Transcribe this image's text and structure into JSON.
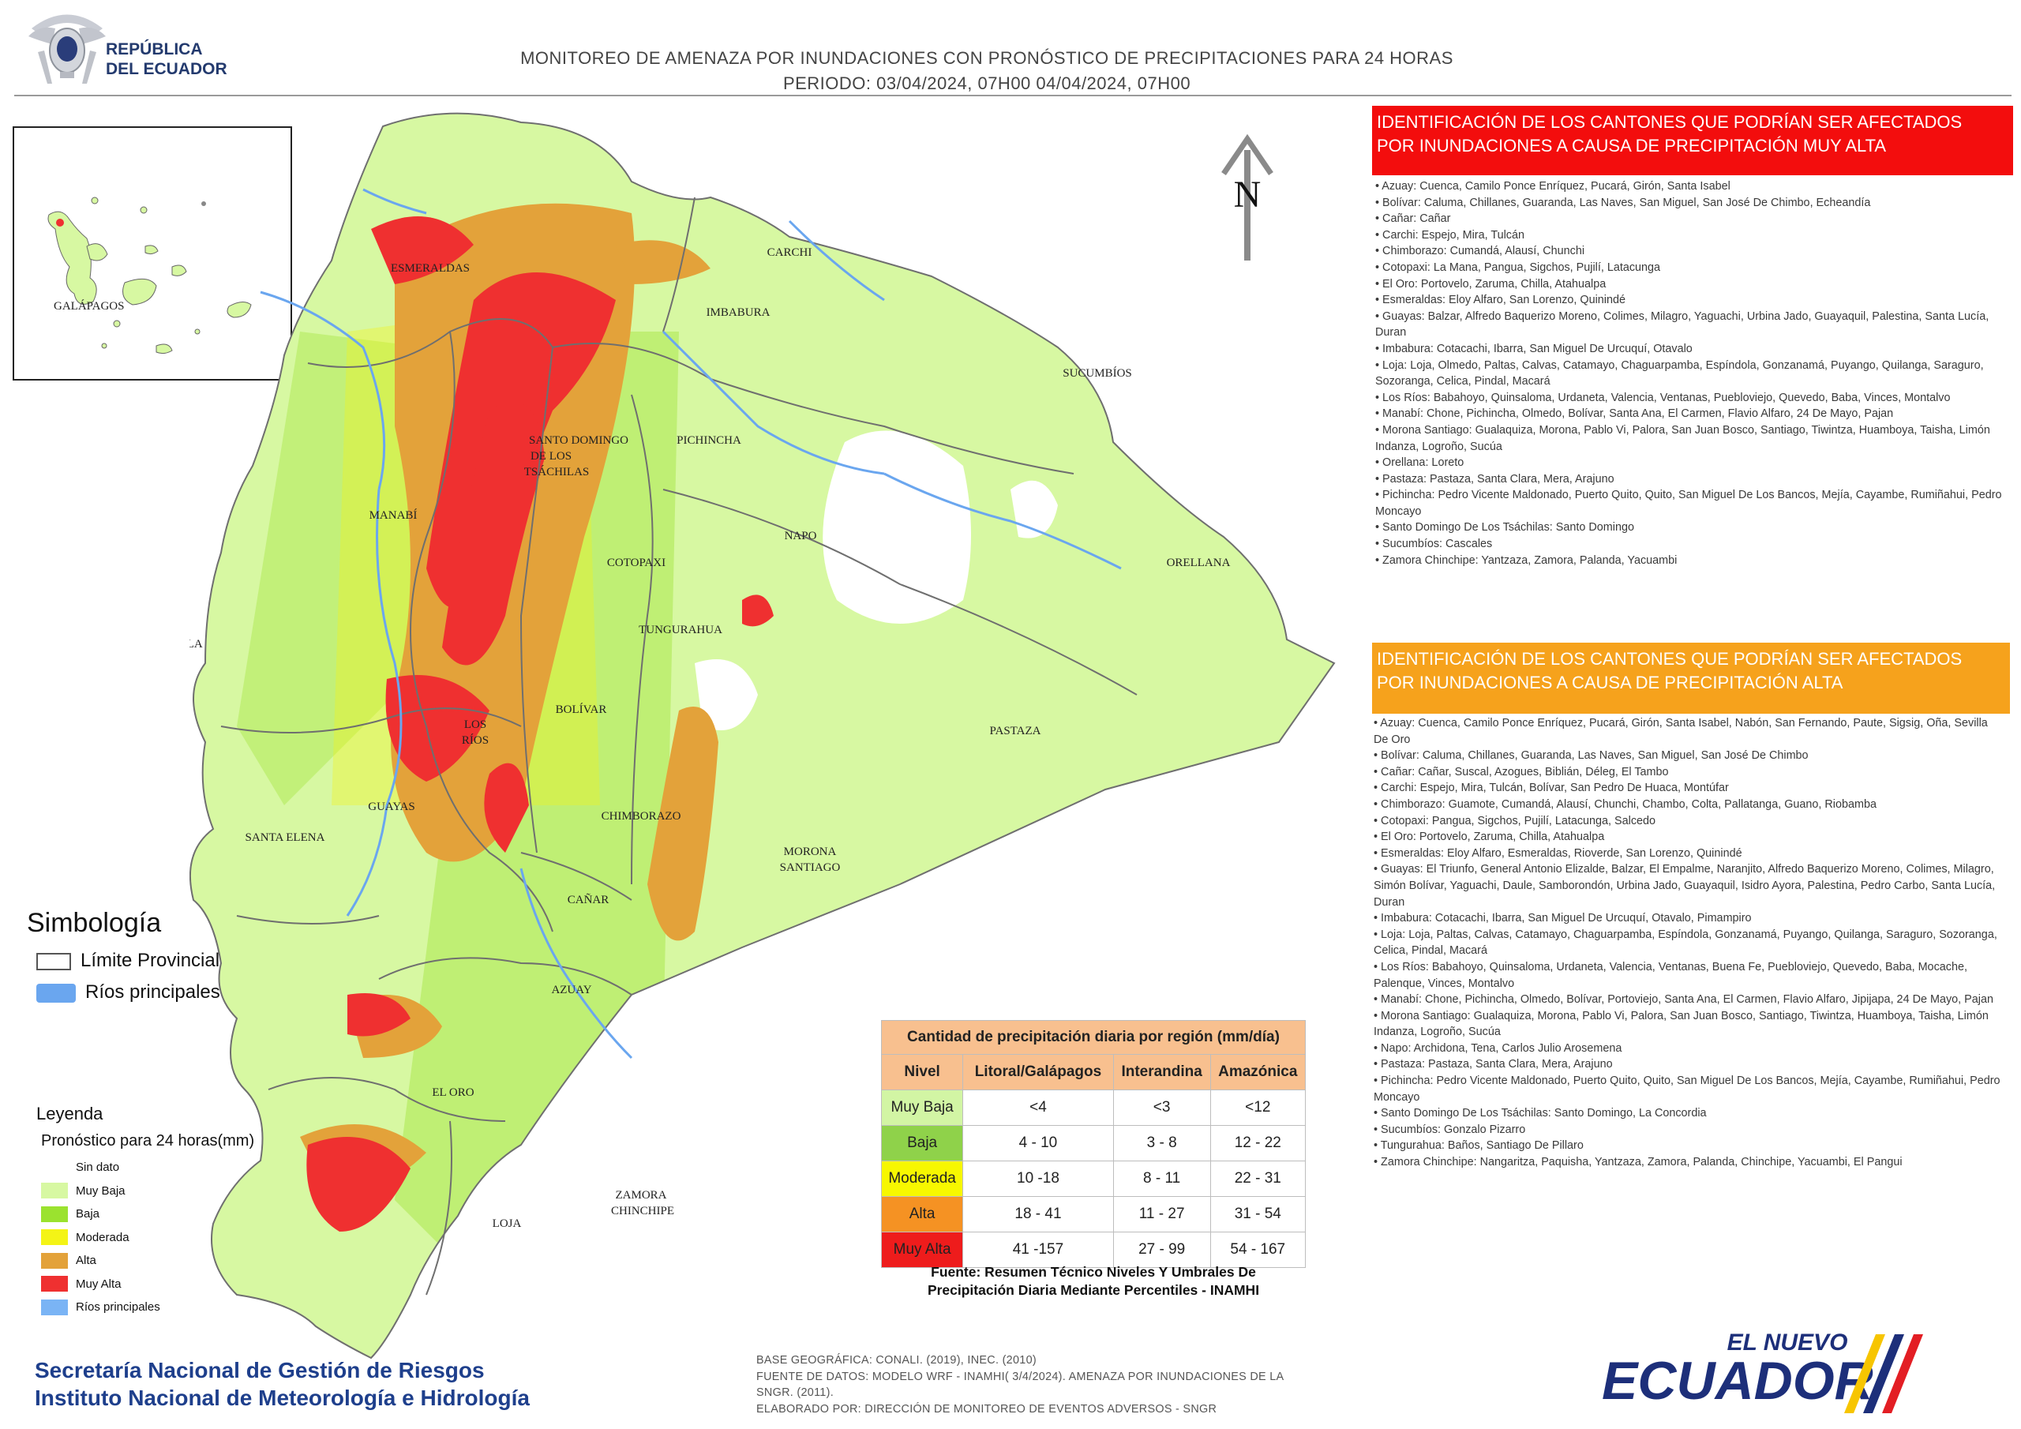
{
  "header": {
    "logo_text_line1": "REPÚBLICA",
    "logo_text_line2": "DEL ECUADOR",
    "title_line1": "MONITOREO DE AMENAZA POR INUNDACIONES  CON PRONÓSTICO DE  PRECIPITACIONES PARA 24 HORAS",
    "title_line2": "PERIODO: 03/04/2024, 07H00 04/04/2024, 07H00"
  },
  "map": {
    "labels": {
      "galapagos": "GALÁPAGOS",
      "esmeraldas": "ESMERALDAS",
      "carchi": "CARCHI",
      "imbabura": "IMBABURA",
      "sucumbios": "SUCUMBÍOS",
      "santo_domingo_1": "SANTO DOMINGO",
      "santo_domingo_2": "DE LOS",
      "santo_domingo_3": "TSÁCHILAS",
      "pichincha": "PICHINCHA",
      "manabi": "MANABÍ",
      "napo": "NAPO",
      "orellana": "ORELLANA",
      "cotopaxi": "COTOPAXI",
      "isla": "ISLA",
      "tungurahua": "TUNGURAHUA",
      "bolivar": "BOLÍVAR",
      "los_rios_1": "LOS",
      "los_rios_2": "RÍOS",
      "pastaza": "PASTAZA",
      "guayas": "GUAYAS",
      "chimborazo": "CHIMBORAZO",
      "santa_elena": "SANTA ELENA",
      "morona_1": "MORONA",
      "morona_2": "SANTIAGO",
      "canar": "CAÑAR",
      "azuay": "AZUAY",
      "el_oro": "EL ORO",
      "zamora_1": "ZAMORA",
      "zamora_2": "CHINCHIPE",
      "loja": "LOJA"
    },
    "north_label": "N"
  },
  "red_panel": {
    "heading_line1": "IDENTIFICACIÓN DE LOS CANTONES QUE PODRÍAN SER AFECTADOS",
    "heading_line2": "POR INUNDACIONES  A CAUSA DE PRECIPITACIÓN MUY ALTA",
    "items": [
      "Azuay: Cuenca, Camilo Ponce Enríquez, Pucará, Girón, Santa Isabel",
      "Bolívar: Caluma, Chillanes, Guaranda, Las Naves, San Miguel, San José De Chimbo, Echeandía",
      "Cañar: Cañar",
      "Carchi: Espejo, Mira, Tulcán",
      "Chimborazo: Cumandá, Alausí, Chunchi",
      "Cotopaxi: La Mana, Pangua, Sigchos, Pujilí, Latacunga",
      "El Oro: Portovelo, Zaruma, Chilla, Atahualpa",
      "Esmeraldas: Eloy Alfaro, San Lorenzo, Quinindé",
      "Guayas: Balzar, Alfredo Baquerizo Moreno, Colimes, Milagro, Yaguachi, Urbina Jado, Guayaquil, Palestina, Santa Lucía, Duran",
      "Imbabura: Cotacachi, Ibarra, San Miguel De Urcuquí, Otavalo",
      "Loja: Loja, Olmedo, Paltas, Calvas, Catamayo, Chaguarpamba, Espíndola, Gonzanamá, Puyango, Quilanga, Saraguro, Sozoranga, Celica, Pindal, Macará",
      "Los Ríos: Babahoyo, Quinsaloma, Urdaneta, Valencia, Ventanas, Puebloviejo, Quevedo, Baba, Vinces, Montalvo",
      "Manabí: Chone, Pichincha, Olmedo, Bolívar, Santa Ana, El Carmen, Flavio Alfaro, 24 De Mayo, Pajan",
      "Morona Santiago: Gualaquiza, Morona, Pablo Vi, Palora, San Juan Bosco, Santiago, Tiwintza, Huamboya, Taisha, Limón Indanza, Logroño, Sucúa",
      "Orellana: Loreto",
      "Pastaza: Pastaza, Santa Clara, Mera, Arajuno",
      "Pichincha: Pedro Vicente Maldonado, Puerto Quito, Quito, San Miguel De Los Bancos, Mejía, Cayambe, Rumiñahui, Pedro Moncayo",
      "Santo Domingo De Los Tsáchilas: Santo Domingo",
      "Sucumbíos: Cascales",
      "Zamora Chinchipe: Yantzaza, Zamora, Palanda, Yacuambi"
    ]
  },
  "orange_panel": {
    "heading_line1": "IDENTIFICACIÓN DE LOS CANTONES QUE  PODRÍAN SER AFECTADOS",
    "heading_line2": "POR INUNDACIONES  A CAUSA DE PRECIPITACIÓN  ALTA",
    "items": [
      "Azuay: Cuenca, Camilo Ponce Enríquez, Pucará, Girón, Santa Isabel, Nabón, San Fernando, Paute, Sigsig, Oña, Sevilla De Oro",
      "Bolívar: Caluma, Chillanes, Guaranda, Las Naves, San Miguel, San José De Chimbo",
      "Cañar: Cañar, Suscal, Azogues, Biblián, Déleg, El Tambo",
      "Carchi: Espejo, Mira, Tulcán, Bolívar, San Pedro De Huaca, Montúfar",
      "Chimborazo: Guamote, Cumandá, Alausí, Chunchi, Chambo, Colta, Pallatanga, Guano, Riobamba",
      "Cotopaxi: Pangua, Sigchos, Pujilí, Latacunga, Salcedo",
      "El Oro: Portovelo, Zaruma, Chilla, Atahualpa",
      "Esmeraldas: Eloy Alfaro, Esmeraldas, Rioverde, San Lorenzo, Quinindé",
      "Guayas: El Triunfo, General Antonio Elizalde, Balzar, El Empalme, Naranjito, Alfredo Baquerizo Moreno, Colimes, Milagro, Simón Bolívar, Yaguachi, Daule, Samborondón, Urbina Jado, Guayaquil, Isidro Ayora, Palestina, Pedro Carbo, Santa Lucía, Duran",
      "Imbabura: Cotacachi, Ibarra, San Miguel De Urcuquí, Otavalo, Pimampiro",
      "Loja: Loja, Paltas, Calvas, Catamayo, Chaguarpamba, Espíndola, Gonzanamá, Puyango, Quilanga, Saraguro, Sozoranga, Celica, Pindal, Macará",
      "Los Ríos: Babahoyo, Quinsaloma, Urdaneta, Valencia, Ventanas, Buena Fe, Puebloviejo, Quevedo, Baba, Mocache, Palenque, Vinces, Montalvo",
      "Manabí: Chone, Pichincha, Olmedo, Bolívar, Portoviejo, Santa Ana, El Carmen, Flavio Alfaro, Jipijapa, 24 De Mayo, Pajan",
      "Morona Santiago: Gualaquiza, Morona, Pablo Vi, Palora, San Juan Bosco, Santiago, Tiwintza, Huamboya, Taisha, Limón Indanza, Logroño, Sucúa",
      "Napo: Archidona, Tena, Carlos Julio Arosemena",
      "Pastaza: Pastaza, Santa Clara, Mera, Arajuno",
      "Pichincha: Pedro Vicente Maldonado, Puerto Quito, Quito, San Miguel De Los Bancos, Mejía, Cayambe, Rumiñahui, Pedro Moncayo",
      "Santo Domingo De Los Tsáchilas: Santo Domingo, La Concordia",
      "Sucumbíos: Gonzalo Pizarro",
      "Tungurahua: Baños, Santiago De Pillaro",
      "Zamora Chinchipe: Nangaritza, Paquisha, Yantzaza, Zamora, Palanda, Chinchipe, Yacuambi, El Pangui"
    ]
  },
  "symbology": {
    "title": "Simbología",
    "limite_label": "Límite Provincial",
    "rios_label": "Ríos principales",
    "colors": {
      "limite_border": "#555555",
      "rios": "#6aa6ef"
    }
  },
  "legend": {
    "title": "Leyenda",
    "subtitle": "Pronóstico para 24 horas(mm)",
    "items": [
      {
        "label": "Sin dato",
        "color": "#ffffff"
      },
      {
        "label": "Muy Baja",
        "color": "#d7f8a2"
      },
      {
        "label": "Baja",
        "color": "#9be22f"
      },
      {
        "label": "Moderada",
        "color": "#f4f416"
      },
      {
        "label": "Alta",
        "color": "#e3a23a"
      },
      {
        "label": "Muy Alta",
        "color": "#ef3030"
      },
      {
        "label": "Ríos principales",
        "color": "#7ab4f5"
      }
    ]
  },
  "precip_table": {
    "caption": "Cantidad de precipitación diaria por región (mm/día)",
    "headers": [
      "Nivel",
      "Litoral/Galápagos",
      "Interandina",
      "Amazónica"
    ],
    "rows": [
      {
        "level": "Muy Baja",
        "color": "#d2f5a4",
        "litoral": "<4",
        "interandina": "<3",
        "amazonica": "<12"
      },
      {
        "level": "Baja",
        "color": "#8fd24a",
        "litoral": "4 - 10",
        "interandina": "3 - 8",
        "amazonica": "12 - 22"
      },
      {
        "level": "Moderada",
        "color": "#f7f700",
        "litoral": "10 -18",
        "interandina": "8 - 11",
        "amazonica": "22 - 31"
      },
      {
        "level": "Alta",
        "color": "#f59223",
        "litoral": "18 - 41",
        "interandina": "11 - 27",
        "amazonica": "31 - 54"
      },
      {
        "level": "Muy Alta",
        "color": "#ee1c1c",
        "litoral": "41 -157",
        "interandina": "27 - 99",
        "amazonica": "54 - 167"
      }
    ],
    "source_line1": "Fuente: Resumen Técnico Niveles Y Umbrales De",
    "source_line2": "Precipitación Diaria Mediante Percentiles - INAMHI"
  },
  "footer": {
    "org_line1": "Secretaría Nacional de Gestión de Riesgos",
    "org_line2": "Instituto Nacional de Meteorología e Hidrología",
    "source_line1": "BASE GEOGRÁFICA: CONALI. (2019), INEC. (2010)",
    "source_line2": "FUENTE DE DATOS: MODELO WRF - INAMHI( 3/4/2024).  AMENAZA POR INUNDACIONES DE LA",
    "source_line3": "SNGR. (2011).",
    "source_line4": "ELABORADO POR: DIRECCIÓN DE MONITOREO DE EVENTOS ADVERSOS - SNGR",
    "brand_top": "EL NUEVO",
    "brand_main": "ECUADOR"
  }
}
